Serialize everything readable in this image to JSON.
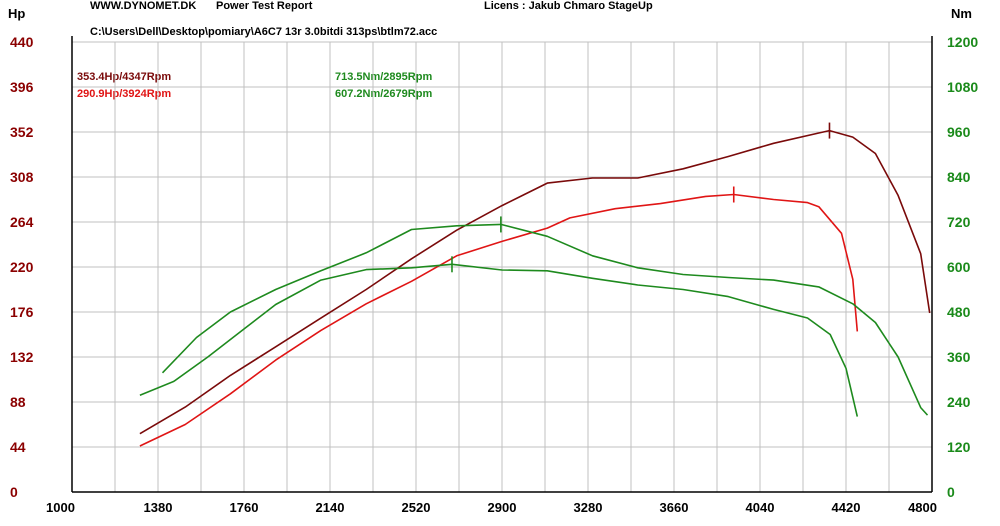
{
  "header": {
    "site": "WWW.DYNOMET.DK",
    "report_title": "Power Test Report",
    "licence": "Licens :  Jakub Chmaro StageUp",
    "file_path": "C:\\Users\\Dell\\Desktop\\pomiary\\A6C7 13r 3.0bitdi 313ps\\btlm72.acc"
  },
  "peaks": {
    "hp_after": "353.4Hp/4347Rpm",
    "hp_before": "290.9Hp/3924Rpm",
    "nm_after": "713.5Nm/2895Rpm",
    "nm_before": "607.2Nm/2679Rpm"
  },
  "colors": {
    "hp_after": "#7a0a0a",
    "hp_before": "#e01515",
    "torque": "#1e8a1e",
    "grid": "#c0c0c0",
    "left_axis_text": "#8b0000",
    "right_axis_text": "#1a8a1a"
  },
  "chart_data": {
    "type": "line",
    "left_axis_unit": "Hp",
    "right_axis_unit": "Nm",
    "xlim": [
      1000,
      4800
    ],
    "ylim_left": [
      0,
      440
    ],
    "ylim_right": [
      0,
      1200
    ],
    "grid": true,
    "x_tick_labels": [
      "1000",
      "1380",
      "1760",
      "2140",
      "2520",
      "2900",
      "3280",
      "3660",
      "4040",
      "4420",
      "4800"
    ],
    "x_tick_values": [
      1000,
      1380,
      1760,
      2140,
      2520,
      2900,
      3280,
      3660,
      4040,
      4420,
      4800
    ],
    "y_left_ticks": [
      0,
      44,
      88,
      132,
      176,
      220,
      264,
      308,
      352,
      396,
      440
    ],
    "y_right_ticks": [
      0,
      120,
      240,
      360,
      480,
      600,
      720,
      840,
      960,
      1080,
      1200
    ],
    "series": [
      {
        "name": "353.4Hp/4347Rpm",
        "axis": "left",
        "color": "#7a0a0a",
        "peak": [
          4347,
          353.4
        ],
        "points": [
          [
            1300,
            57
          ],
          [
            1500,
            83
          ],
          [
            1700,
            114
          ],
          [
            1900,
            142
          ],
          [
            2100,
            170
          ],
          [
            2300,
            198
          ],
          [
            2500,
            228
          ],
          [
            2700,
            256
          ],
          [
            2900,
            280
          ],
          [
            3000,
            291
          ],
          [
            3100,
            302
          ],
          [
            3300,
            307
          ],
          [
            3500,
            307
          ],
          [
            3700,
            316
          ],
          [
            3900,
            328
          ],
          [
            4100,
            341
          ],
          [
            4300,
            351
          ],
          [
            4347,
            353.4
          ],
          [
            4450,
            347
          ],
          [
            4550,
            331
          ],
          [
            4650,
            290
          ],
          [
            4750,
            233
          ],
          [
            4790,
            175
          ]
        ]
      },
      {
        "name": "290.9Hp/3924Rpm",
        "axis": "left",
        "color": "#e01515",
        "peak": [
          3924,
          290.9
        ],
        "points": [
          [
            1300,
            45
          ],
          [
            1500,
            66
          ],
          [
            1700,
            96
          ],
          [
            1900,
            129
          ],
          [
            2100,
            158
          ],
          [
            2300,
            184
          ],
          [
            2500,
            206
          ],
          [
            2700,
            231
          ],
          [
            2900,
            245
          ],
          [
            3100,
            258
          ],
          [
            3200,
            268
          ],
          [
            3400,
            277
          ],
          [
            3600,
            282
          ],
          [
            3800,
            289
          ],
          [
            3924,
            290.9
          ],
          [
            4100,
            286
          ],
          [
            4250,
            283
          ],
          [
            4300,
            279
          ],
          [
            4400,
            253
          ],
          [
            4450,
            208
          ],
          [
            4470,
            157
          ]
        ]
      },
      {
        "name": "713.5Nm/2895Rpm",
        "axis": "right",
        "color": "#1e8a1e",
        "peak": [
          2895,
          713.5
        ],
        "points": [
          [
            1400,
            318
          ],
          [
            1550,
            412
          ],
          [
            1700,
            480
          ],
          [
            1900,
            540
          ],
          [
            2100,
            590
          ],
          [
            2300,
            638
          ],
          [
            2500,
            700
          ],
          [
            2700,
            710
          ],
          [
            2895,
            713.5
          ],
          [
            3100,
            682
          ],
          [
            3300,
            630
          ],
          [
            3500,
            598
          ],
          [
            3700,
            580
          ],
          [
            3900,
            572
          ],
          [
            4100,
            565
          ],
          [
            4300,
            547
          ],
          [
            4450,
            502
          ],
          [
            4550,
            452
          ],
          [
            4650,
            360
          ],
          [
            4750,
            225
          ],
          [
            4780,
            205
          ]
        ]
      },
      {
        "name": "607.2Nm/2679Rpm",
        "axis": "right",
        "color": "#1e8a1e",
        "peak": [
          2679,
          607.2
        ],
        "points": [
          [
            1300,
            258
          ],
          [
            1450,
            295
          ],
          [
            1600,
            360
          ],
          [
            1750,
            430
          ],
          [
            1900,
            500
          ],
          [
            2100,
            565
          ],
          [
            2300,
            593
          ],
          [
            2500,
            598
          ],
          [
            2679,
            607.2
          ],
          [
            2900,
            592
          ],
          [
            3100,
            590
          ],
          [
            3300,
            570
          ],
          [
            3500,
            552
          ],
          [
            3700,
            540
          ],
          [
            3900,
            521
          ],
          [
            4100,
            487
          ],
          [
            4250,
            464
          ],
          [
            4350,
            420
          ],
          [
            4420,
            330
          ],
          [
            4470,
            201
          ]
        ]
      }
    ]
  }
}
